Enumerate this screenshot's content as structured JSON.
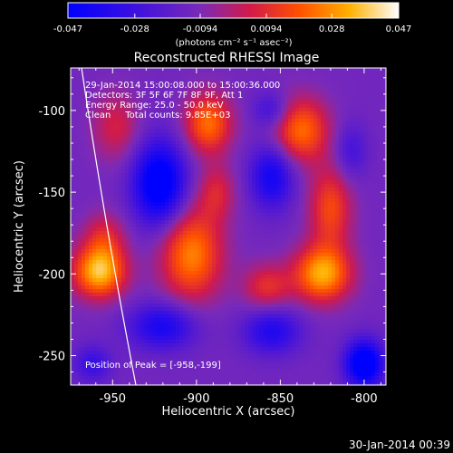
{
  "colorbar": {
    "ticks": [
      "-0.047",
      "-0.028",
      "-0.0094",
      "0.0094",
      "0.028",
      "0.047"
    ],
    "range": [
      -0.047,
      0.047
    ],
    "label": "(photons cm⁻² s⁻¹ asec⁻²)"
  },
  "chart_data": {
    "type": "heatmap",
    "title": "Reconstructed RHESSI Image",
    "xlabel": "Heliocentric X (arcsec)",
    "ylabel": "Heliocentric Y (arcsec)",
    "xlim": [
      -975,
      -787
    ],
    "ylim": [
      -268,
      -74
    ],
    "xticks": [
      -950,
      -900,
      -850,
      -800
    ],
    "yticks": [
      -100,
      -150,
      -200,
      -250
    ],
    "colormap": "blue-purple-red-yellow-white",
    "peak": {
      "x": -958,
      "y": -199
    },
    "blobs": [
      {
        "x": -958,
        "y": -199,
        "sx": 11,
        "sy": 11,
        "a": 0.047
      },
      {
        "x": -955,
        "y": -178,
        "sx": 9,
        "sy": 11,
        "a": 0.02
      },
      {
        "x": -948,
        "y": -110,
        "sx": 10,
        "sy": 15,
        "a": 0.018
      },
      {
        "x": -903,
        "y": -188,
        "sx": 13,
        "sy": 20,
        "a": 0.038
      },
      {
        "x": -893,
        "y": -108,
        "sx": 10,
        "sy": 13,
        "a": 0.035
      },
      {
        "x": -888,
        "y": -150,
        "sx": 8,
        "sy": 12,
        "a": 0.018
      },
      {
        "x": -858,
        "y": -208,
        "sx": 10,
        "sy": 10,
        "a": 0.022
      },
      {
        "x": -825,
        "y": -200,
        "sx": 12,
        "sy": 12,
        "a": 0.044
      },
      {
        "x": -820,
        "y": -160,
        "sx": 9,
        "sy": 18,
        "a": 0.028
      },
      {
        "x": -838,
        "y": -112,
        "sx": 12,
        "sy": 14,
        "a": 0.035
      },
      {
        "x": -922,
        "y": -145,
        "sx": 11,
        "sy": 18,
        "a": -0.045
      },
      {
        "x": -855,
        "y": -140,
        "sx": 9,
        "sy": 14,
        "a": -0.03
      },
      {
        "x": -855,
        "y": -100,
        "sx": 8,
        "sy": 8,
        "a": -0.018
      },
      {
        "x": -920,
        "y": -232,
        "sx": 14,
        "sy": 10,
        "a": -0.028
      },
      {
        "x": -855,
        "y": -235,
        "sx": 12,
        "sy": 10,
        "a": -0.025
      },
      {
        "x": -800,
        "y": -255,
        "sx": 8,
        "sy": 10,
        "a": -0.047
      },
      {
        "x": -962,
        "y": -255,
        "sx": 8,
        "sy": 8,
        "a": -0.018
      },
      {
        "x": -808,
        "y": -125,
        "sx": 7,
        "sy": 12,
        "a": -0.015
      }
    ],
    "annotations": [
      "29-Jan-2014 15:00:08.000 to 15:00:36.000",
      "Detectors: 3F 5F 6F 7F 8F 9F, Att 1",
      "Energy Range: 25.0 - 50.0 keV",
      "Clean     Total counts: 9.85E+03"
    ],
    "peak_label": "Position of Peak = [-958,-199]"
  },
  "footer_date": "30-Jan-2014 00:39"
}
